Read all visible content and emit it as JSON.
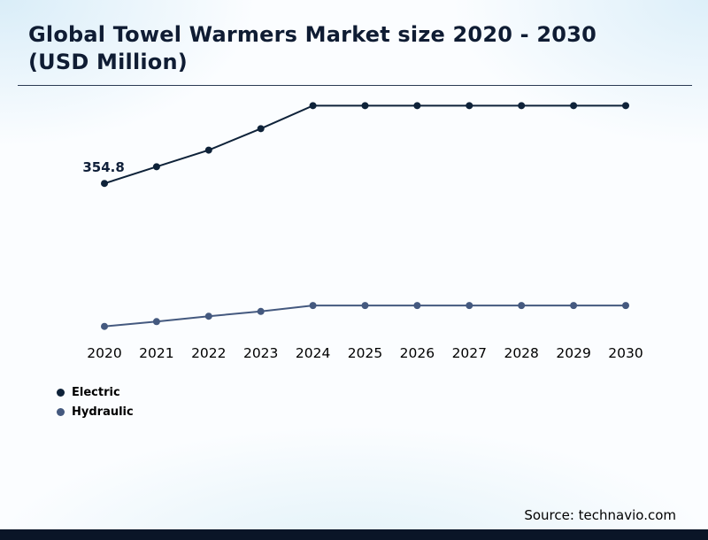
{
  "header": {
    "title": "Global Towel Warmers Market size 2020 - 2030 (USD Million)"
  },
  "footer": {
    "source": "Source: technavio.com"
  },
  "colors": {
    "electric": "#0e2239",
    "hydraulic": "#44597f",
    "footer_bar": "#0a1527",
    "title_text": "#0f1c33"
  },
  "chart_data": {
    "type": "line",
    "title": "Global Towel Warmers Market size 2020 - 2030 (USD Million)",
    "xlabel": "",
    "ylabel": "USD Million",
    "categories": [
      "2020",
      "2021",
      "2022",
      "2023",
      "2024",
      "2025",
      "2026",
      "2027",
      "2028",
      "2029",
      "2030"
    ],
    "series": [
      {
        "name": "Electric",
        "color": "#0e2239",
        "values": [
          354.8,
          386,
          417,
          457,
          500,
          500,
          500,
          500,
          500,
          500,
          500
        ]
      },
      {
        "name": "Hydraulic",
        "color": "#44597f",
        "values": [
          88,
          97,
          107,
          116,
          127,
          127,
          127,
          127,
          127,
          127,
          127
        ]
      }
    ],
    "annotations": [
      {
        "text": "354.8",
        "series": "Electric",
        "category": "2020"
      }
    ],
    "ylim": [
      0,
      560
    ],
    "grid": false,
    "legend_position": "bottom-left"
  }
}
